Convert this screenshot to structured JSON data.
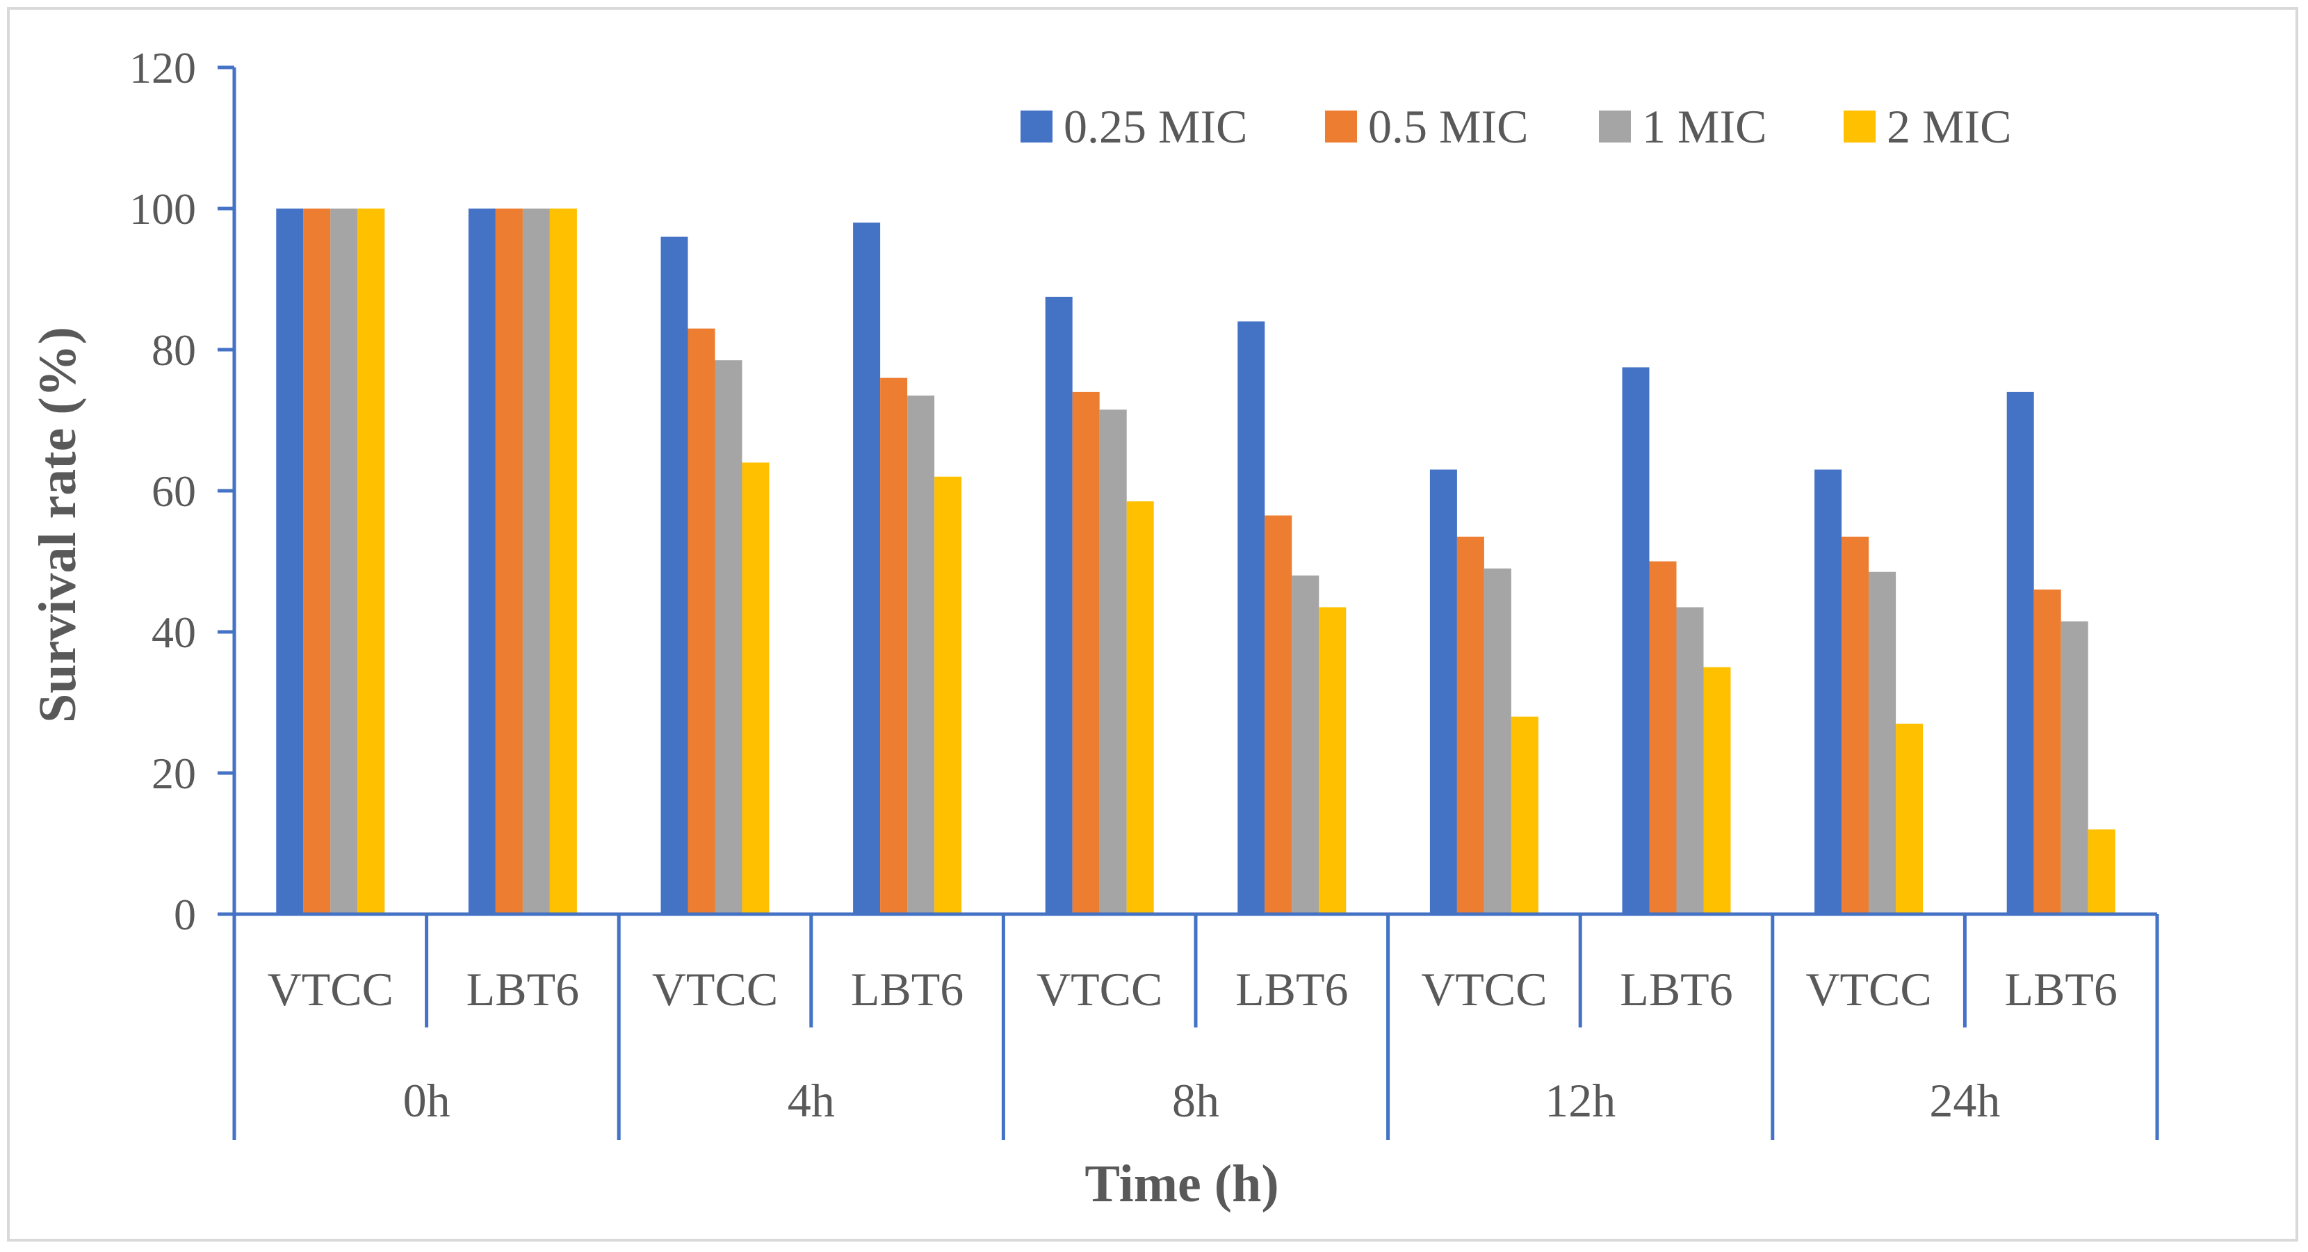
{
  "chart_data": {
    "type": "bar",
    "title": "",
    "xlabel": "Time (h)",
    "ylabel": "Survival rate (%)",
    "ylim": [
      0,
      120
    ],
    "yticks": [
      0,
      20,
      40,
      60,
      80,
      100,
      120
    ],
    "grid": false,
    "legend_position": "top-right",
    "groups": [
      {
        "label": "0h",
        "categories": [
          "VTCC",
          "LBT6"
        ]
      },
      {
        "label": "4h",
        "categories": [
          "VTCC",
          "LBT6"
        ]
      },
      {
        "label": "8h",
        "categories": [
          "VTCC",
          "LBT6"
        ]
      },
      {
        "label": "12h",
        "categories": [
          "VTCC",
          "LBT6"
        ]
      },
      {
        "label": "24h",
        "categories": [
          "VTCC",
          "LBT6"
        ]
      }
    ],
    "series": [
      {
        "name": "0.25 MIC",
        "color": "#4472c4",
        "values": [
          100,
          100,
          96,
          98,
          87.5,
          84,
          63,
          77.5,
          63,
          74
        ]
      },
      {
        "name": "0.5 MIC",
        "color": "#ed7d31",
        "values": [
          100,
          100,
          83,
          76,
          74,
          56.5,
          53.5,
          50,
          53.5,
          46
        ]
      },
      {
        "name": "1 MIC",
        "color": "#a5a5a5",
        "values": [
          100,
          100,
          78.5,
          73.5,
          71.5,
          48,
          49,
          43.5,
          48.5,
          41.5
        ]
      },
      {
        "name": "2 MIC",
        "color": "#ffc000",
        "values": [
          100,
          100,
          64,
          62,
          58.5,
          43.5,
          28,
          35,
          27,
          12
        ]
      }
    ]
  },
  "colors": {
    "axis": "#4472c4",
    "text": "#595959"
  }
}
